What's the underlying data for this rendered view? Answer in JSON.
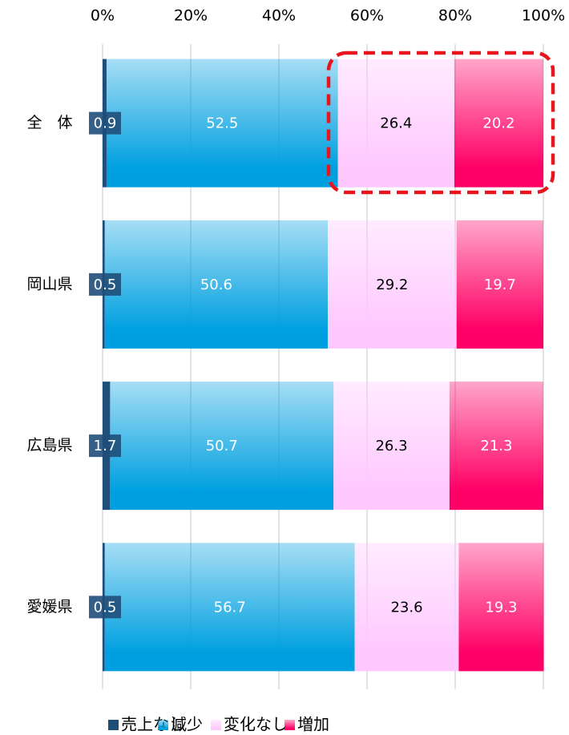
{
  "chart_data": {
    "type": "stacked_bar_horizontal",
    "categories": [
      "全　体",
      "岡山県",
      "広島県",
      "愛媛県"
    ],
    "series": [
      {
        "name": "売上なし",
        "color": "#1f4e79",
        "label_color": "#ffffff",
        "values": [
          0.9,
          0.5,
          1.7,
          0.5
        ]
      },
      {
        "name": "減少",
        "color": "#00a0e0",
        "label_color": "#ffffff",
        "values": [
          52.5,
          50.6,
          50.7,
          56.7
        ]
      },
      {
        "name": "変化なし",
        "color": "#ffc8ff",
        "label_color": "#000000",
        "values": [
          26.4,
          29.2,
          26.3,
          23.6
        ]
      },
      {
        "name": "増加",
        "color": "#ff0066",
        "label_color": "#ffffff",
        "values": [
          20.2,
          19.7,
          21.3,
          19.3
        ]
      }
    ],
    "xlim": [
      0,
      100
    ],
    "xticks": [
      {
        "value": 0,
        "label": "0%"
      },
      {
        "value": 20,
        "label": "20%"
      },
      {
        "value": 40,
        "label": "40%"
      },
      {
        "value": 60,
        "label": "60%"
      },
      {
        "value": 80,
        "label": "80%"
      },
      {
        "value": 100,
        "label": "100%"
      }
    ],
    "grid": true,
    "legend": "bottom"
  }
}
